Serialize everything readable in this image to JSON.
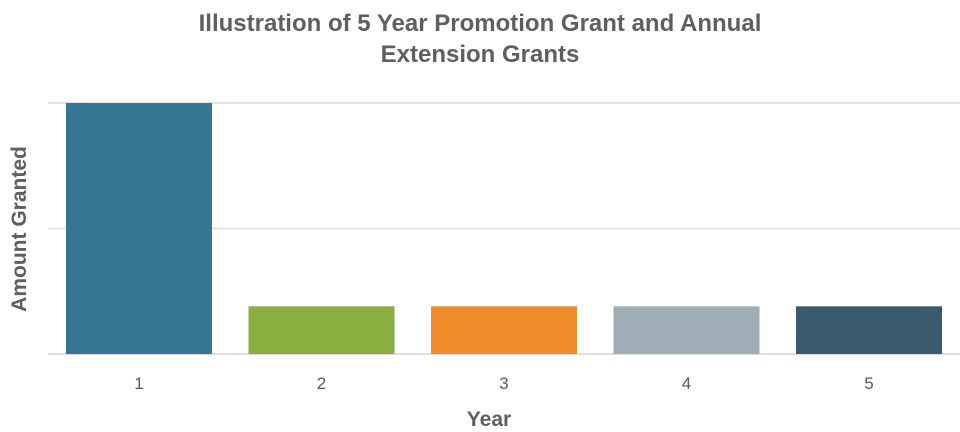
{
  "chart_data": {
    "type": "bar",
    "title": "Illustration of 5 Year Promotion Grant and Annual Extension Grants",
    "title_lines": [
      "Illustration of 5 Year Promotion Grant and Annual",
      "Extension Grants"
    ],
    "xlabel": "Year",
    "ylabel": "Amount Granted",
    "categories": [
      "1",
      "2",
      "3",
      "4",
      "5"
    ],
    "values": [
      1.0,
      0.19,
      0.19,
      0.19,
      0.19
    ],
    "ylim": [
      0,
      1
    ],
    "gridline_values": [
      0,
      0.5,
      1.0
    ],
    "bar_colors": [
      "#367694",
      "#8aaf41",
      "#f08c2a",
      "#9fadb7",
      "#3a5a70"
    ],
    "y_tick_labels_shown": false,
    "grid": true,
    "legend": "none"
  }
}
